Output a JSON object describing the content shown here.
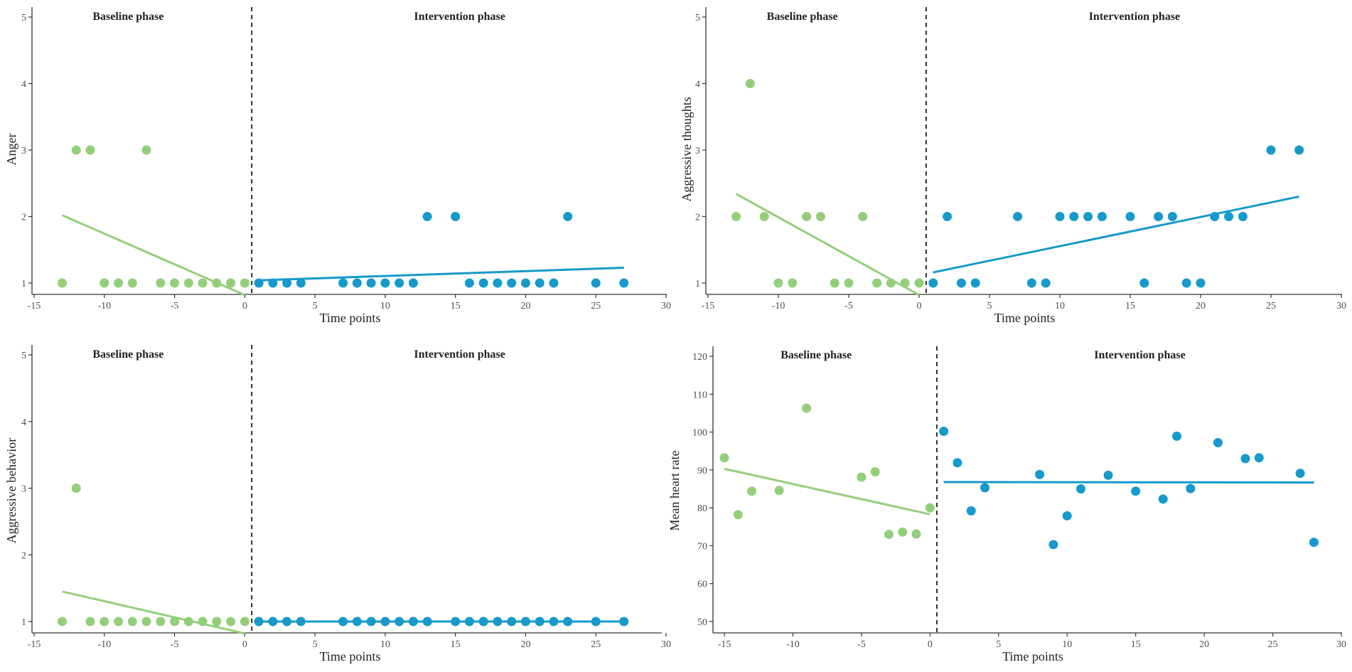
{
  "colors": {
    "baseline": "#93CF7B",
    "intervention": "#1699CB"
  },
  "chart_data": [
    {
      "type": "scatter",
      "ylabel": "Anger",
      "xlabel": "Time points",
      "xlim": [
        -15,
        30
      ],
      "ylim": [
        1,
        5
      ],
      "x_ticks": [
        -15,
        -10,
        -5,
        0,
        5,
        10,
        15,
        20,
        25,
        30
      ],
      "y_ticks": [
        1,
        2,
        3,
        4,
        5
      ],
      "phase_labels": [
        "Baseline phase",
        "Intervention phase"
      ],
      "phase_change_x": 0.5,
      "series": [
        {
          "name": "Baseline",
          "x": [
            -13,
            -12,
            -11,
            -10,
            -9,
            -8,
            -7,
            -6,
            -5,
            -4,
            -3,
            -2,
            -1,
            0
          ],
          "y": [
            1,
            3,
            3,
            1,
            1,
            1,
            3,
            1,
            1,
            1,
            1,
            1,
            1,
            1
          ],
          "trend": {
            "x": [
              -13,
              0
            ],
            "y": [
              2.02,
              0.82
            ]
          }
        },
        {
          "name": "Intervention",
          "x": [
            1,
            2,
            3,
            4,
            7,
            8,
            9,
            10,
            11,
            12,
            13,
            15,
            16,
            17,
            18,
            19,
            20,
            21,
            22,
            23,
            25,
            27
          ],
          "y": [
            1,
            1,
            1,
            1,
            1,
            1,
            1,
            1,
            1,
            1,
            2,
            2,
            1,
            1,
            1,
            1,
            1,
            1,
            1,
            2,
            1,
            1
          ],
          "trend": {
            "x": [
              1,
              27
            ],
            "y": [
              1.04,
              1.23
            ]
          }
        }
      ]
    },
    {
      "type": "scatter",
      "ylabel": "Aggressive thoughts",
      "xlabel": "Time points",
      "xlim": [
        -15,
        30
      ],
      "ylim": [
        1,
        5
      ],
      "x_ticks": [
        -15,
        -10,
        -5,
        0,
        5,
        10,
        15,
        20,
        25,
        30
      ],
      "y_ticks": [
        1,
        2,
        3,
        4,
        5
      ],
      "phase_labels": [
        "Baseline phase",
        "Intervention phase"
      ],
      "phase_change_x": 0.5,
      "series": [
        {
          "name": "Baseline",
          "x": [
            -13,
            -12,
            -11,
            -10,
            -9,
            -8,
            -7,
            -6,
            -5,
            -4,
            -3,
            -2,
            -1,
            0
          ],
          "y": [
            2,
            4,
            2,
            1,
            1,
            2,
            2,
            1,
            1,
            2,
            1,
            1,
            1,
            1
          ],
          "trend": {
            "x": [
              -13,
              0
            ],
            "y": [
              2.34,
              0.82
            ]
          }
        },
        {
          "name": "Intervention",
          "x": [
            1,
            2,
            3,
            4,
            7,
            8,
            9,
            10,
            11,
            12,
            13,
            15,
            16,
            17,
            18,
            19,
            20,
            21,
            22,
            23,
            25,
            27
          ],
          "y": [
            1,
            2,
            1,
            1,
            2,
            1,
            1,
            2,
            2,
            2,
            2,
            2,
            1,
            2,
            2,
            1,
            1,
            2,
            2,
            2,
            3,
            3
          ],
          "trend": {
            "x": [
              1,
              27
            ],
            "y": [
              1.16,
              2.3
            ]
          }
        }
      ]
    },
    {
      "type": "scatter",
      "ylabel": "Aggressive behavior",
      "xlabel": "Time points",
      "xlim": [
        -15,
        30
      ],
      "ylim": [
        1,
        5
      ],
      "x_ticks": [
        -15,
        -10,
        -5,
        0,
        5,
        10,
        15,
        20,
        25,
        30
      ],
      "y_ticks": [
        1,
        2,
        3,
        4,
        5
      ],
      "phase_labels": [
        "Baseline phase",
        "Intervention phase"
      ],
      "phase_change_x": 0.5,
      "series": [
        {
          "name": "Baseline",
          "x": [
            -13,
            -12,
            -11,
            -10,
            -9,
            -8,
            -7,
            -6,
            -5,
            -4,
            -3,
            -2,
            -1,
            0
          ],
          "y": [
            1,
            3,
            1,
            1,
            1,
            1,
            1,
            1,
            1,
            1,
            1,
            1,
            1,
            1
          ],
          "trend": {
            "x": [
              -13,
              0
            ],
            "y": [
              1.45,
              0.82
            ]
          }
        },
        {
          "name": "Intervention",
          "x": [
            1,
            2,
            3,
            4,
            7,
            8,
            9,
            10,
            11,
            12,
            13,
            15,
            16,
            17,
            18,
            19,
            20,
            21,
            22,
            23,
            25,
            27
          ],
          "y": [
            1,
            1,
            1,
            1,
            1,
            1,
            1,
            1,
            1,
            1,
            1,
            1,
            1,
            1,
            1,
            1,
            1,
            1,
            1,
            1,
            1,
            1
          ],
          "trend": {
            "x": [
              1,
              27
            ],
            "y": [
              1,
              1
            ]
          }
        }
      ]
    },
    {
      "type": "scatter",
      "ylabel": "Mean heart rate",
      "xlabel": "Time points",
      "xlim": [
        -16.5,
        30
      ],
      "ylim": [
        50,
        120
      ],
      "x_ticks": [
        -15,
        -10,
        -5,
        0,
        5,
        10,
        15,
        20,
        25,
        30
      ],
      "y_ticks": [
        50,
        60,
        70,
        80,
        90,
        100,
        110,
        120
      ],
      "phase_labels": [
        "Baseline phase",
        "Intervention phase"
      ],
      "phase_change_x": 0.5,
      "series": [
        {
          "name": "Baseline",
          "x": [
            -15,
            -14,
            -13,
            -11,
            -9,
            -5,
            -4,
            -3,
            -2,
            -1,
            0
          ],
          "y": [
            93.2,
            78.2,
            84.4,
            84.6,
            106.3,
            88.1,
            89.5,
            73,
            73.6,
            73.1,
            80
          ],
          "trend": {
            "x": [
              -15,
              0
            ],
            "y": [
              90.3,
              78.3
            ]
          }
        },
        {
          "name": "Intervention",
          "x": [
            1,
            2,
            3,
            4,
            8,
            9,
            10,
            11,
            13,
            15,
            17,
            18,
            19,
            21,
            23,
            24,
            27,
            28
          ],
          "y": [
            100.2,
            91.9,
            79.2,
            85.3,
            88.8,
            70.3,
            77.9,
            85,
            88.6,
            84.4,
            82.3,
            98.9,
            85.1,
            97.2,
            93,
            93.2,
            89.1,
            70.9
          ],
          "trend": {
            "x": [
              1,
              28
            ],
            "y": [
              86.8,
              86.7
            ]
          }
        }
      ]
    }
  ]
}
